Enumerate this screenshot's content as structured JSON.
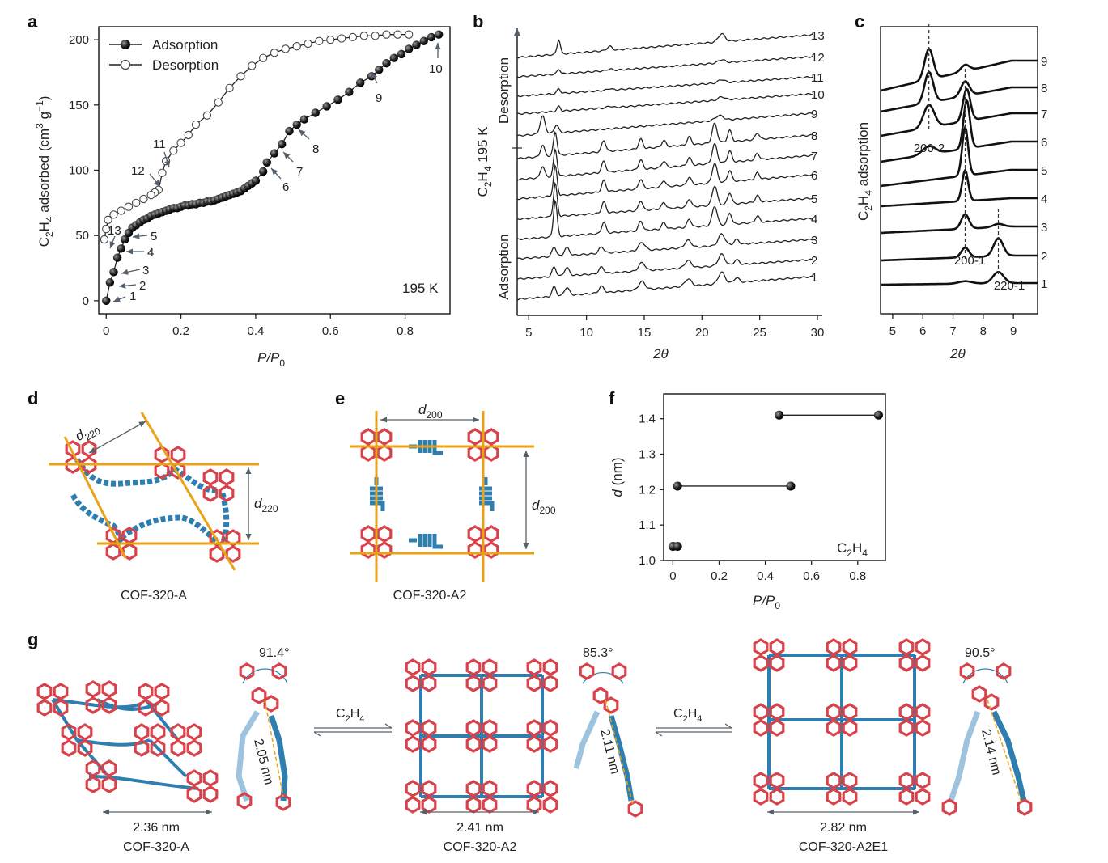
{
  "panels": {
    "a": "a",
    "b": "b",
    "c": "c",
    "d": "d",
    "e": "e",
    "f": "f",
    "g": "g"
  },
  "chart_data": [
    {
      "panel": "a",
      "type": "line",
      "xlabel": "P/P0",
      "ylabel": "C2H4 adsorbed (cm3 g-1)",
      "xlim": [
        -0.02,
        0.92
      ],
      "ylim": [
        -10,
        210
      ],
      "x_ticks": [
        "0",
        "0.2",
        "0.4",
        "0.6",
        "0.8"
      ],
      "y_ticks": [
        "0",
        "50",
        "100",
        "150",
        "200"
      ],
      "legend": [
        "Adsorption",
        "Desorption"
      ],
      "legend_position": "top-left",
      "annotation": "195 K",
      "series": [
        {
          "name": "Adsorption",
          "marker": "filled",
          "x": [
            0.0,
            0.01,
            0.02,
            0.03,
            0.04,
            0.05,
            0.06,
            0.07,
            0.08,
            0.09,
            0.1,
            0.11,
            0.12,
            0.13,
            0.14,
            0.15,
            0.16,
            0.17,
            0.18,
            0.19,
            0.2,
            0.21,
            0.22,
            0.23,
            0.24,
            0.25,
            0.26,
            0.27,
            0.28,
            0.29,
            0.3,
            0.31,
            0.32,
            0.33,
            0.34,
            0.35,
            0.36,
            0.37,
            0.38,
            0.39,
            0.4,
            0.42,
            0.43,
            0.45,
            0.47,
            0.49,
            0.51,
            0.53,
            0.56,
            0.59,
            0.62,
            0.65,
            0.68,
            0.71,
            0.73,
            0.75,
            0.77,
            0.79,
            0.81,
            0.83,
            0.85,
            0.87,
            0.89
          ],
          "y": [
            0,
            14,
            22,
            33,
            40,
            47,
            52,
            56,
            58,
            60,
            62,
            63,
            65,
            66,
            67,
            68,
            69,
            70,
            71,
            71,
            72,
            73,
            73,
            74,
            74,
            75,
            75,
            76,
            76,
            77,
            78,
            79,
            80,
            81,
            82,
            83,
            84,
            86,
            88,
            90,
            92,
            99,
            106,
            113,
            120,
            130,
            135,
            139,
            144,
            149,
            154,
            160,
            167,
            172,
            177,
            182,
            186,
            189,
            193,
            196,
            199,
            202,
            204
          ]
        },
        {
          "name": "Desorption",
          "marker": "open",
          "x": [
            0.81,
            0.78,
            0.75,
            0.72,
            0.69,
            0.66,
            0.63,
            0.6,
            0.57,
            0.54,
            0.51,
            0.48,
            0.45,
            0.42,
            0.39,
            0.36,
            0.33,
            0.3,
            0.27,
            0.24,
            0.22,
            0.2,
            0.18,
            0.16,
            0.15,
            0.14,
            0.13,
            0.12,
            0.1,
            0.08,
            0.06,
            0.04,
            0.02,
            0.005,
            0.0,
            -0.005
          ],
          "y": [
            204,
            204,
            204,
            203,
            203,
            202,
            201,
            200,
            199,
            197,
            195,
            193,
            190,
            186,
            180,
            172,
            163,
            152,
            142,
            135,
            127,
            121,
            115,
            107,
            98,
            85,
            83,
            81,
            78,
            75,
            72,
            69,
            66,
            62,
            55,
            47
          ]
        }
      ],
      "point_labels": [
        "1",
        "2",
        "3",
        "4",
        "5",
        "6",
        "7",
        "8",
        "9",
        "10",
        "11",
        "12",
        "13"
      ]
    },
    {
      "panel": "b",
      "type": "line",
      "xlabel": "2θ",
      "ylabel": "C2H4 195 K",
      "xlim": [
        4,
        30
      ],
      "x_ticks": [
        "5",
        "10",
        "15",
        "20",
        "25",
        "30"
      ],
      "curve_labels": [
        "1",
        "2",
        "3",
        "4",
        "5",
        "6",
        "7",
        "8",
        "9",
        "10",
        "11",
        "12",
        "13"
      ],
      "side_labels": [
        "Adsorption",
        "Desorption"
      ]
    },
    {
      "panel": "c",
      "type": "line",
      "xlabel": "2θ",
      "ylabel": "C2H4 adsorption",
      "xlim": [
        4.6,
        9.8
      ],
      "x_ticks": [
        "5",
        "6",
        "7",
        "8",
        "9"
      ],
      "curve_labels": [
        "1",
        "2",
        "3",
        "4",
        "5",
        "6",
        "7",
        "8",
        "9"
      ],
      "peak_labels": [
        "200-2",
        "200-1",
        "220-1"
      ]
    },
    {
      "panel": "f",
      "type": "scatter",
      "xlabel": "P/P0",
      "ylabel": "d (nm)",
      "xlim": [
        -0.04,
        0.92
      ],
      "ylim": [
        1.0,
        1.47
      ],
      "x_ticks": [
        "0",
        "0.2",
        "0.4",
        "0.6",
        "0.8"
      ],
      "y_ticks": [
        "1.0",
        "1.1",
        "1.2",
        "1.3",
        "1.4"
      ],
      "annotation": "C2H4",
      "segments": [
        {
          "x": [
            0.0,
            0.02
          ],
          "y": [
            1.04,
            1.04
          ]
        },
        {
          "x": [
            0.02,
            0.51
          ],
          "y": [
            1.21,
            1.21
          ]
        },
        {
          "x": [
            0.46,
            0.89
          ],
          "y": [
            1.41,
            1.41
          ]
        }
      ]
    }
  ],
  "panel_d": {
    "name": "COF-320-A",
    "dim1": "d220",
    "dim2": "d220"
  },
  "panel_e": {
    "name": "COF-320-A2",
    "dim1": "d200",
    "dim2": "d200"
  },
  "panel_g": {
    "structures": [
      {
        "name": "COF-320-A",
        "width": "2.36 nm",
        "angle": "91.4°",
        "length": "2.05 nm"
      },
      {
        "name": "COF-320-A2",
        "width": "2.41 nm",
        "angle": "85.3°",
        "length": "2.11 nm"
      },
      {
        "name": "COF-320-A2E1",
        "width": "2.82 nm",
        "angle": "90.5°",
        "length": "2.14 nm"
      }
    ],
    "arrow_label": "C2H4"
  },
  "colors": {
    "red": "#d8424a",
    "blue": "#2e7fb0",
    "gold": "#e8a317",
    "dark": "#222222"
  }
}
